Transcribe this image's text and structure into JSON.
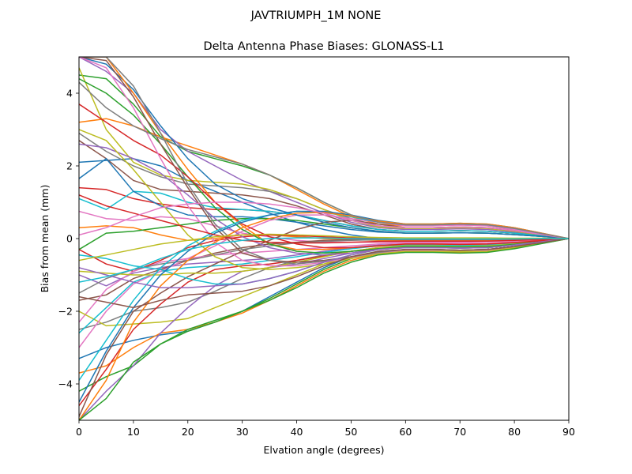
{
  "chart_data": {
    "type": "line",
    "suptitle": "JAVTRIUMPH_1M   NONE",
    "title": "Delta Antenna Phase Biases: GLONASS-L1",
    "xlabel": "Elvation angle (degrees)",
    "ylabel": "Bias from mean (mm)",
    "xlim": [
      0,
      90
    ],
    "ylim": [
      -5,
      5
    ],
    "xticks": [
      "0",
      "10",
      "20",
      "30",
      "40",
      "50",
      "60",
      "70",
      "80",
      "90"
    ],
    "yticks": [
      "−4",
      "−2",
      "0",
      "2",
      "4"
    ],
    "grid": false,
    "legend": "none",
    "colors": [
      "#1f77b4",
      "#ff7f0e",
      "#2ca02c",
      "#d62728",
      "#9467bd",
      "#8c564b",
      "#e377c2",
      "#7f7f7f",
      "#bcbd22",
      "#17becf"
    ],
    "x": [
      0,
      5,
      10,
      15,
      20,
      25,
      30,
      35,
      40,
      45,
      50,
      55,
      60,
      65,
      70,
      75,
      80,
      85,
      90
    ],
    "series": [
      {
        "values": [
          2.1,
          2.15,
          2.2,
          2.0,
          1.6,
          1.3,
          1.0,
          0.7,
          0.45,
          0.25,
          0.1,
          0.0,
          -0.05,
          -0.05,
          -0.05,
          -0.05,
          -0.05,
          -0.03,
          0.0
        ]
      },
      {
        "values": [
          3.2,
          3.3,
          3.1,
          2.8,
          2.55,
          2.3,
          2.05,
          1.75,
          1.35,
          0.95,
          0.6,
          0.4,
          0.35,
          0.35,
          0.38,
          0.35,
          0.25,
          0.12,
          0.0
        ]
      },
      {
        "values": [
          4.5,
          4.4,
          3.7,
          2.8,
          2.4,
          2.2,
          2.0,
          1.75,
          1.4,
          1.0,
          0.65,
          0.45,
          0.4,
          0.4,
          0.4,
          0.38,
          0.28,
          0.14,
          0.0
        ]
      },
      {
        "values": [
          1.4,
          1.35,
          1.1,
          0.95,
          0.85,
          0.8,
          0.8,
          0.75,
          0.65,
          0.5,
          0.35,
          0.25,
          0.2,
          0.2,
          0.22,
          0.2,
          0.15,
          0.08,
          0.0
        ]
      },
      {
        "values": [
          5.0,
          4.6,
          4.0,
          3.0,
          2.4,
          2.0,
          1.6,
          1.3,
          1.0,
          0.7,
          0.45,
          0.3,
          0.25,
          0.25,
          0.27,
          0.25,
          0.18,
          0.09,
          0.0
        ]
      },
      {
        "values": [
          2.7,
          2.2,
          1.6,
          1.35,
          1.3,
          1.25,
          1.2,
          1.1,
          0.9,
          0.65,
          0.4,
          0.25,
          0.2,
          0.2,
          0.22,
          0.2,
          0.15,
          0.08,
          0.0
        ]
      },
      {
        "values": [
          0.75,
          0.55,
          0.5,
          0.6,
          0.55,
          0.35,
          0.15,
          0.05,
          -0.05,
          -0.1,
          -0.1,
          -0.1,
          -0.1,
          -0.1,
          -0.1,
          -0.08,
          -0.06,
          -0.03,
          0.0
        ]
      },
      {
        "values": [
          2.9,
          2.4,
          2.0,
          1.7,
          1.5,
          1.45,
          1.4,
          1.3,
          1.1,
          0.8,
          0.55,
          0.35,
          0.3,
          0.3,
          0.32,
          0.3,
          0.22,
          0.11,
          0.0
        ]
      },
      {
        "values": [
          4.7,
          3.0,
          2.1,
          1.75,
          1.6,
          1.55,
          1.5,
          1.35,
          1.1,
          0.8,
          0.5,
          0.32,
          0.28,
          0.28,
          0.3,
          0.28,
          0.2,
          0.1,
          0.0
        ]
      },
      {
        "values": [
          1.1,
          0.8,
          1.3,
          1.25,
          1.0,
          0.85,
          0.8,
          0.75,
          0.65,
          0.5,
          0.35,
          0.25,
          0.2,
          0.2,
          0.22,
          0.2,
          0.15,
          0.08,
          0.0
        ]
      },
      {
        "values": [
          1.65,
          2.2,
          1.3,
          0.9,
          0.65,
          0.6,
          0.6,
          0.55,
          0.45,
          0.35,
          0.25,
          0.18,
          0.15,
          0.15,
          0.16,
          0.15,
          0.11,
          0.06,
          0.0
        ]
      },
      {
        "values": [
          0.3,
          0.35,
          0.3,
          0.1,
          -0.05,
          0.0,
          0.1,
          0.1,
          0.05,
          0.0,
          -0.03,
          -0.05,
          -0.05,
          -0.05,
          -0.05,
          -0.04,
          -0.03,
          -0.02,
          0.0
        ]
      },
      {
        "values": [
          -0.3,
          0.15,
          0.2,
          0.3,
          0.4,
          0.5,
          0.55,
          0.55,
          0.5,
          0.4,
          0.3,
          0.2,
          0.15,
          0.15,
          0.16,
          0.15,
          0.11,
          0.06,
          0.0
        ]
      },
      {
        "values": [
          -0.3,
          -0.7,
          -0.9,
          -0.6,
          -0.25,
          -0.05,
          0.05,
          0.1,
          0.08,
          0.05,
          0.02,
          0.0,
          -0.02,
          -0.02,
          -0.02,
          -0.02,
          -0.01,
          -0.01,
          0.0
        ]
      },
      {
        "values": [
          -1.0,
          -1.3,
          -0.95,
          -0.8,
          -0.7,
          -0.65,
          -0.6,
          -0.55,
          -0.45,
          -0.35,
          -0.25,
          -0.18,
          -0.15,
          -0.15,
          -0.16,
          -0.15,
          -0.11,
          -0.06,
          0.0
        ]
      },
      {
        "values": [
          -1.7,
          -1.55,
          -1.1,
          -0.85,
          -0.6,
          -0.4,
          -0.25,
          -0.15,
          -0.1,
          -0.05,
          -0.03,
          -0.02,
          -0.02,
          -0.02,
          -0.02,
          -0.02,
          -0.01,
          -0.01,
          0.0
        ]
      },
      {
        "values": [
          -2.3,
          -1.4,
          -0.9,
          -0.65,
          -0.55,
          -0.45,
          -0.4,
          -0.35,
          -0.3,
          -0.25,
          -0.2,
          -0.15,
          -0.12,
          -0.12,
          -0.13,
          -0.12,
          -0.09,
          -0.05,
          0.0
        ]
      },
      {
        "values": [
          -2.5,
          -2.3,
          -2.0,
          -1.9,
          -1.75,
          -1.45,
          -1.1,
          -0.8,
          -0.6,
          -0.45,
          -0.35,
          -0.28,
          -0.25,
          -0.25,
          -0.26,
          -0.25,
          -0.18,
          -0.09,
          0.0
        ]
      },
      {
        "values": [
          -2.0,
          -2.4,
          -2.35,
          -2.3,
          -2.2,
          -1.9,
          -1.6,
          -1.3,
          -1.0,
          -0.7,
          -0.45,
          -0.3,
          -0.25,
          -0.25,
          -0.26,
          -0.25,
          -0.18,
          -0.09,
          0.0
        ]
      },
      {
        "values": [
          -2.6,
          -1.9,
          -1.2,
          -0.9,
          -0.8,
          -0.75,
          -0.7,
          -0.6,
          -0.5,
          -0.38,
          -0.28,
          -0.2,
          -0.18,
          -0.18,
          -0.19,
          -0.18,
          -0.13,
          -0.07,
          0.0
        ]
      },
      {
        "values": [
          -3.3,
          -3.0,
          -2.8,
          -2.65,
          -2.55,
          -2.3,
          -2.0,
          -1.6,
          -1.2,
          -0.8,
          -0.5,
          -0.35,
          -0.3,
          -0.3,
          -0.32,
          -0.3,
          -0.22,
          -0.11,
          0.0
        ]
      },
      {
        "values": [
          -3.7,
          -3.5,
          -3.0,
          -2.6,
          -2.5,
          -2.3,
          -2.05,
          -1.7,
          -1.3,
          -0.9,
          -0.6,
          -0.42,
          -0.36,
          -0.36,
          -0.38,
          -0.36,
          -0.26,
          -0.13,
          0.0
        ]
      },
      {
        "values": [
          -4.2,
          -3.8,
          -3.5,
          -2.9,
          -2.55,
          -2.3,
          -2.0,
          -1.65,
          -1.25,
          -0.85,
          -0.55,
          -0.38,
          -0.33,
          -0.33,
          -0.35,
          -0.33,
          -0.24,
          -0.12,
          0.0
        ]
      },
      {
        "values": [
          -4.6,
          -3.6,
          -2.5,
          -1.8,
          -1.2,
          -0.85,
          -0.75,
          -0.7,
          -0.6,
          -0.48,
          -0.35,
          -0.25,
          -0.22,
          -0.22,
          -0.23,
          -0.22,
          -0.16,
          -0.08,
          0.0
        ]
      },
      {
        "values": [
          -5.0,
          -4.2,
          -3.5,
          -2.6,
          -1.9,
          -1.3,
          -0.9,
          -0.8,
          -0.7,
          -0.55,
          -0.4,
          -0.28,
          -0.24,
          -0.24,
          -0.25,
          -0.24,
          -0.17,
          -0.09,
          0.0
        ]
      },
      {
        "values": [
          -4.9,
          -3.2,
          -2.0,
          -1.5,
          -1.05,
          -0.7,
          -0.35,
          -0.05,
          0.25,
          0.45,
          0.5,
          0.4,
          0.3,
          0.3,
          0.32,
          0.3,
          0.22,
          0.11,
          0.0
        ]
      },
      {
        "values": [
          -3.0,
          -2.0,
          -1.25,
          -0.9,
          -0.55,
          -0.2,
          0.2,
          0.5,
          0.65,
          0.65,
          0.55,
          0.45,
          0.35,
          0.35,
          0.37,
          0.35,
          0.25,
          0.13,
          0.0
        ]
      },
      {
        "values": [
          -1.5,
          -1.1,
          -0.85,
          -0.7,
          -0.6,
          -0.45,
          -0.3,
          -0.2,
          -0.12,
          -0.08,
          -0.05,
          -0.03,
          -0.03,
          -0.03,
          -0.03,
          -0.03,
          -0.02,
          -0.01,
          0.0
        ]
      },
      {
        "values": [
          -0.9,
          -0.95,
          -1.0,
          -1.0,
          -0.95,
          -0.95,
          -0.9,
          -0.8,
          -0.65,
          -0.5,
          -0.35,
          -0.25,
          -0.2,
          -0.2,
          -0.22,
          -0.2,
          -0.15,
          -0.08,
          0.0
        ]
      },
      {
        "values": [
          -0.45,
          -0.55,
          -0.75,
          -0.85,
          -1.1,
          -1.25,
          -1.25,
          -1.1,
          -0.9,
          -0.65,
          -0.45,
          -0.3,
          -0.25,
          -0.25,
          -0.26,
          -0.25,
          -0.18,
          -0.09,
          0.0
        ]
      },
      {
        "values": [
          5.0,
          4.8,
          4.1,
          3.1,
          2.2,
          1.5,
          1.1,
          0.85,
          0.65,
          0.45,
          0.3,
          0.2,
          0.15,
          0.15,
          0.16,
          0.15,
          0.11,
          0.06,
          0.0
        ]
      },
      {
        "values": [
          5.0,
          5.0,
          4.0,
          2.9,
          1.9,
          1.0,
          0.35,
          -0.15,
          -0.3,
          -0.3,
          -0.25,
          -0.2,
          -0.15,
          -0.15,
          -0.16,
          -0.15,
          -0.11,
          -0.06,
          0.0
        ]
      },
      {
        "values": [
          4.4,
          4.0,
          3.4,
          2.6,
          1.7,
          0.85,
          0.25,
          -0.15,
          -0.35,
          -0.4,
          -0.35,
          -0.28,
          -0.22,
          -0.22,
          -0.23,
          -0.22,
          -0.16,
          -0.08,
          0.0
        ]
      },
      {
        "values": [
          3.7,
          3.2,
          2.7,
          2.3,
          1.7,
          1.0,
          0.4,
          0.05,
          -0.15,
          -0.25,
          -0.25,
          -0.2,
          -0.15,
          -0.15,
          -0.16,
          -0.15,
          -0.11,
          -0.06,
          0.0
        ]
      },
      {
        "values": [
          2.6,
          2.5,
          2.2,
          1.8,
          1.2,
          0.55,
          0.05,
          -0.25,
          -0.4,
          -0.45,
          -0.4,
          -0.3,
          -0.25,
          -0.25,
          -0.26,
          -0.25,
          -0.18,
          -0.09,
          0.0
        ]
      },
      {
        "values": [
          5.0,
          4.9,
          3.9,
          2.6,
          1.4,
          0.3,
          -0.4,
          -0.6,
          -0.65,
          -0.6,
          -0.5,
          -0.38,
          -0.3,
          -0.3,
          -0.32,
          -0.3,
          -0.22,
          -0.11,
          0.0
        ]
      },
      {
        "values": [
          5.0,
          4.7,
          3.6,
          2.2,
          0.9,
          -0.1,
          -0.6,
          -0.75,
          -0.75,
          -0.65,
          -0.52,
          -0.4,
          -0.32,
          -0.32,
          -0.33,
          -0.32,
          -0.23,
          -0.12,
          0.0
        ]
      },
      {
        "values": [
          5.0,
          5.0,
          4.2,
          2.9,
          1.5,
          0.4,
          -0.3,
          -0.6,
          -0.7,
          -0.62,
          -0.5,
          -0.38,
          -0.3,
          -0.3,
          -0.32,
          -0.3,
          -0.22,
          -0.11,
          0.0
        ]
      },
      {
        "values": [
          3.0,
          2.7,
          1.9,
          1.0,
          0.1,
          -0.5,
          -0.8,
          -0.85,
          -0.8,
          -0.7,
          -0.55,
          -0.42,
          -0.35,
          -0.35,
          -0.36,
          -0.35,
          -0.25,
          -0.13,
          0.0
        ]
      },
      {
        "values": [
          -3.9,
          -2.8,
          -1.7,
          -0.8,
          -0.2,
          0.2,
          0.5,
          0.65,
          0.75,
          0.72,
          0.6,
          0.45,
          0.38,
          0.38,
          0.4,
          0.38,
          0.28,
          0.14,
          0.0
        ]
      },
      {
        "values": [
          -4.5,
          -3.1,
          -1.9,
          -1.0,
          -0.35,
          0.15,
          0.45,
          0.65,
          0.75,
          0.75,
          0.65,
          0.5,
          0.4,
          0.4,
          0.42,
          0.4,
          0.3,
          0.15,
          0.0
        ]
      },
      {
        "values": [
          -5.0,
          -3.9,
          -2.3,
          -1.3,
          -0.6,
          -0.1,
          0.3,
          0.55,
          0.7,
          0.72,
          0.62,
          0.48,
          0.4,
          0.4,
          0.42,
          0.4,
          0.3,
          0.15,
          0.0
        ]
      },
      {
        "values": [
          -5.0,
          -4.4,
          -3.4,
          -2.9,
          -2.5,
          -2.25,
          -2.0,
          -1.7,
          -1.35,
          -0.95,
          -0.65,
          -0.45,
          -0.38,
          -0.38,
          -0.4,
          -0.38,
          -0.28,
          -0.14,
          0.0
        ]
      },
      {
        "values": [
          1.2,
          0.9,
          0.7,
          0.5,
          0.3,
          0.1,
          -0.05,
          -0.1,
          -0.12,
          -0.12,
          -0.1,
          -0.08,
          -0.07,
          -0.07,
          -0.07,
          -0.07,
          -0.05,
          -0.03,
          0.0
        ]
      },
      {
        "values": [
          -0.8,
          -1.0,
          -1.2,
          -1.35,
          -1.35,
          -1.3,
          -1.25,
          -1.1,
          -0.9,
          -0.65,
          -0.45,
          -0.3,
          -0.25,
          -0.25,
          -0.26,
          -0.25,
          -0.18,
          -0.09,
          0.0
        ]
      },
      {
        "values": [
          -1.6,
          -1.75,
          -1.9,
          -1.7,
          -1.55,
          -1.5,
          -1.45,
          -1.3,
          -1.05,
          -0.75,
          -0.5,
          -0.35,
          -0.3,
          -0.3,
          -0.32,
          -0.3,
          -0.22,
          -0.11,
          0.0
        ]
      },
      {
        "values": [
          0.1,
          0.3,
          0.6,
          0.85,
          0.95,
          1.0,
          1.0,
          0.95,
          0.85,
          0.7,
          0.5,
          0.35,
          0.3,
          0.3,
          0.32,
          0.3,
          0.22,
          0.11,
          0.0
        ]
      },
      {
        "values": [
          4.3,
          3.6,
          3.1,
          2.75,
          2.45,
          2.25,
          2.05,
          1.75,
          1.4,
          1.0,
          0.65,
          0.45,
          0.38,
          0.38,
          0.4,
          0.38,
          0.28,
          0.14,
          0.0
        ]
      },
      {
        "values": [
          -0.6,
          -0.45,
          -0.3,
          -0.15,
          -0.05,
          0.05,
          0.1,
          0.12,
          0.1,
          0.08,
          0.05,
          0.03,
          0.02,
          0.02,
          0.02,
          0.02,
          0.01,
          0.01,
          0.0
        ]
      },
      {
        "values": [
          -1.2,
          -1.05,
          -0.85,
          -0.55,
          -0.3,
          -0.15,
          -0.05,
          0.0,
          0.02,
          0.02,
          0.0,
          -0.01,
          -0.01,
          -0.01,
          -0.01,
          -0.01,
          -0.01,
          0.0,
          0.0
        ]
      }
    ]
  }
}
